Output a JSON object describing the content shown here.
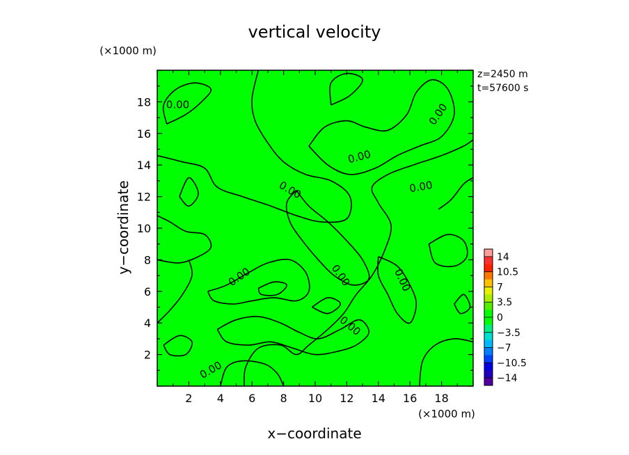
{
  "chart_data": {
    "type": "heatmap",
    "title": "vertical velocity",
    "xlabel": "x−coordinate",
    "ylabel": "y−coordinate",
    "x_unit": "(×1000 m)",
    "y_unit": "(×1000 m)",
    "annotation_z": "z=2450 m",
    "annotation_t": "t=57600 s",
    "xlim": [
      0,
      20
    ],
    "ylim": [
      0,
      20
    ],
    "x_ticks": [
      "2",
      "4",
      "6",
      "8",
      "10",
      "12",
      "14",
      "16",
      "18"
    ],
    "y_ticks": [
      "2",
      "4",
      "6",
      "8",
      "10",
      "12",
      "14",
      "16",
      "18"
    ],
    "field_value": 0,
    "field_color": "#00ff00",
    "contour_label": "0.00",
    "contour_labels": [
      {
        "text": "0.00",
        "x": 1.3,
        "y": 17.8,
        "rot": 0
      },
      {
        "text": "0.00",
        "x": 17.8,
        "y": 17.2,
        "rot": -55
      },
      {
        "text": "0.00",
        "x": 12.8,
        "y": 14.5,
        "rot": -15
      },
      {
        "text": "0.00",
        "x": 16.7,
        "y": 12.6,
        "rot": -10
      },
      {
        "text": "0.00",
        "x": 8.4,
        "y": 12.4,
        "rot": 30
      },
      {
        "text": "0.00",
        "x": 5.2,
        "y": 6.9,
        "rot": -35
      },
      {
        "text": "0.00",
        "x": 11.6,
        "y": 7.0,
        "rot": 55
      },
      {
        "text": "0.00",
        "x": 15.5,
        "y": 6.7,
        "rot": 65
      },
      {
        "text": "0.00",
        "x": 12.2,
        "y": 3.8,
        "rot": 40
      },
      {
        "text": "0.00",
        "x": 3.4,
        "y": 1.0,
        "rot": -30
      }
    ],
    "contours": [
      [
        [
          5.5,
          0
        ],
        [
          5.6,
          1.2
        ],
        [
          6.4,
          2.4
        ],
        [
          7.8,
          2.6
        ],
        [
          8.8,
          2.0
        ],
        [
          9.6,
          2.6
        ],
        [
          10.8,
          3.6
        ],
        [
          11.8,
          4.6
        ],
        [
          12.6,
          5.8
        ],
        [
          13.6,
          7.0
        ],
        [
          14.4,
          8.6
        ],
        [
          14.8,
          10.2
        ],
        [
          14.0,
          11.6
        ],
        [
          13.6,
          12.6
        ],
        [
          14.6,
          13.4
        ],
        [
          16.2,
          14.0
        ],
        [
          18.0,
          14.6
        ],
        [
          19.4,
          15.2
        ],
        [
          20,
          15.6
        ]
      ],
      [
        [
          0,
          8.0
        ],
        [
          1.4,
          7.8
        ],
        [
          2.6,
          8.2
        ],
        [
          3.4,
          8.8
        ],
        [
          3.0,
          9.6
        ],
        [
          1.8,
          9.8
        ],
        [
          0.8,
          10.4
        ],
        [
          0,
          10.8
        ]
      ],
      [
        [
          4.0,
          0
        ],
        [
          4.4,
          1.2
        ],
        [
          5.4,
          1.6
        ],
        [
          6.8,
          1.4
        ],
        [
          7.6,
          0.8
        ],
        [
          8.0,
          0
        ]
      ],
      [
        [
          16.6,
          0
        ],
        [
          16.8,
          1.6
        ],
        [
          17.6,
          2.6
        ],
        [
          18.8,
          3.0
        ],
        [
          20,
          2.8
        ]
      ],
      [
        [
          0,
          14.6
        ],
        [
          1.6,
          14.2
        ],
        [
          3.0,
          13.8
        ],
        [
          3.8,
          12.6
        ],
        [
          5.4,
          12.0
        ],
        [
          7.2,
          11.4
        ],
        [
          8.8,
          10.8
        ],
        [
          10.4,
          10.4
        ],
        [
          12.0,
          10.6
        ],
        [
          12.2,
          12.0
        ],
        [
          11.0,
          13.0
        ],
        [
          9.4,
          13.4
        ],
        [
          8.0,
          14.2
        ],
        [
          7.0,
          15.4
        ],
        [
          6.2,
          16.8
        ],
        [
          6.0,
          18.2
        ],
        [
          6.4,
          20
        ]
      ],
      [
        [
          0.6,
          16.6
        ],
        [
          1.8,
          17.2
        ],
        [
          2.8,
          18.0
        ],
        [
          3.4,
          18.8
        ],
        [
          2.4,
          19.2
        ],
        [
          1.2,
          18.8
        ],
        [
          0.4,
          17.8
        ],
        [
          0.6,
          16.6
        ]
      ],
      [
        [
          9.6,
          15.2
        ],
        [
          10.8,
          14.0
        ],
        [
          12.2,
          13.4
        ],
        [
          13.8,
          13.8
        ],
        [
          15.2,
          14.6
        ],
        [
          16.6,
          15.2
        ],
        [
          18.0,
          15.8
        ],
        [
          18.8,
          17.2
        ],
        [
          18.4,
          18.8
        ],
        [
          17.4,
          19.4
        ],
        [
          16.4,
          18.6
        ],
        [
          15.8,
          17.2
        ],
        [
          14.6,
          16.2
        ],
        [
          13.2,
          16.4
        ],
        [
          12.0,
          16.8
        ],
        [
          10.6,
          16.4
        ],
        [
          9.6,
          15.2
        ]
      ],
      [
        [
          8.8,
          12.4
        ],
        [
          9.6,
          11.4
        ],
        [
          10.8,
          10.4
        ],
        [
          12.0,
          9.2
        ],
        [
          13.0,
          8.0
        ],
        [
          13.4,
          6.8
        ],
        [
          12.4,
          6.4
        ],
        [
          11.2,
          7.0
        ],
        [
          10.2,
          8.0
        ],
        [
          9.2,
          9.2
        ],
        [
          8.4,
          10.4
        ],
        [
          8.2,
          11.6
        ],
        [
          8.8,
          12.4
        ]
      ],
      [
        [
          14.0,
          8.2
        ],
        [
          15.2,
          7.6
        ],
        [
          16.0,
          6.4
        ],
        [
          16.4,
          5.2
        ],
        [
          16.0,
          4.0
        ],
        [
          15.2,
          4.6
        ],
        [
          14.6,
          5.8
        ],
        [
          14.0,
          7.0
        ],
        [
          14.0,
          8.2
        ]
      ],
      [
        [
          3.2,
          6.0
        ],
        [
          4.4,
          6.4
        ],
        [
          5.8,
          7.2
        ],
        [
          7.0,
          7.8
        ],
        [
          8.4,
          8.0
        ],
        [
          9.4,
          7.2
        ],
        [
          9.6,
          6.0
        ],
        [
          8.8,
          5.4
        ],
        [
          7.4,
          5.6
        ],
        [
          6.0,
          5.4
        ],
        [
          4.8,
          5.2
        ],
        [
          3.6,
          5.4
        ],
        [
          3.2,
          6.0
        ]
      ],
      [
        [
          3.8,
          3.6
        ],
        [
          5.0,
          4.2
        ],
        [
          6.4,
          4.4
        ],
        [
          7.8,
          4.0
        ],
        [
          9.0,
          3.4
        ],
        [
          10.2,
          3.0
        ],
        [
          11.6,
          3.6
        ],
        [
          12.8,
          4.2
        ],
        [
          13.4,
          3.4
        ],
        [
          12.6,
          2.6
        ],
        [
          11.4,
          2.2
        ],
        [
          10.0,
          2.0
        ],
        [
          8.6,
          2.4
        ],
        [
          7.2,
          2.8
        ],
        [
          5.8,
          2.6
        ],
        [
          4.4,
          2.8
        ],
        [
          3.8,
          3.6
        ]
      ],
      [
        [
          17.2,
          9.0
        ],
        [
          18.4,
          9.6
        ],
        [
          19.4,
          9.2
        ],
        [
          19.6,
          8.2
        ],
        [
          18.8,
          7.6
        ],
        [
          17.6,
          7.8
        ],
        [
          17.2,
          9.0
        ]
      ],
      [
        [
          11.0,
          17.8
        ],
        [
          12.2,
          18.4
        ],
        [
          13.0,
          19.4
        ],
        [
          12.0,
          19.8
        ],
        [
          11.0,
          19.2
        ],
        [
          11.0,
          17.8
        ]
      ],
      [
        [
          17.8,
          11.2
        ],
        [
          18.6,
          11.8
        ],
        [
          19.4,
          12.8
        ],
        [
          20,
          13.2
        ]
      ],
      [
        [
          0,
          4.0
        ],
        [
          0.8,
          4.8
        ],
        [
          1.6,
          5.8
        ],
        [
          2.2,
          7.0
        ],
        [
          2.0,
          8.0
        ]
      ],
      [
        [
          1.4,
          12.0
        ],
        [
          2.0,
          13.2
        ],
        [
          2.6,
          12.2
        ],
        [
          2.0,
          11.4
        ],
        [
          1.4,
          12.0
        ]
      ],
      [
        [
          0.4,
          2.6
        ],
        [
          1.4,
          3.2
        ],
        [
          2.2,
          2.8
        ],
        [
          1.8,
          2.0
        ],
        [
          0.8,
          2.0
        ],
        [
          0.4,
          2.6
        ]
      ],
      [
        [
          6.4,
          6.2
        ],
        [
          7.4,
          6.6
        ],
        [
          8.2,
          6.4
        ],
        [
          7.6,
          5.8
        ],
        [
          6.6,
          5.8
        ],
        [
          6.4,
          6.2
        ]
      ],
      [
        [
          9.8,
          5.0
        ],
        [
          10.8,
          5.6
        ],
        [
          11.6,
          5.2
        ],
        [
          10.8,
          4.6
        ],
        [
          9.8,
          5.0
        ]
      ],
      [
        [
          18.8,
          5.2
        ],
        [
          19.4,
          5.8
        ],
        [
          19.8,
          5.0
        ],
        [
          19.2,
          4.6
        ],
        [
          18.8,
          5.2
        ]
      ]
    ],
    "colorbar": {
      "levels": [
        "14",
        "10.5",
        "7",
        "3.5",
        "0",
        "−3.5",
        "−7",
        "−10.5",
        "−14"
      ],
      "colors": [
        "#ff9c9c",
        "#ff3030",
        "#ff2000",
        "#ff7800",
        "#ffc000",
        "#e8f000",
        "#aaee00",
        "#55ee00",
        "#00ff00",
        "#00ff00",
        "#00f080",
        "#00e0d0",
        "#00b8ff",
        "#0080ff",
        "#0040ff",
        "#0000e0",
        "#2000c0",
        "#5000a0"
      ]
    }
  }
}
